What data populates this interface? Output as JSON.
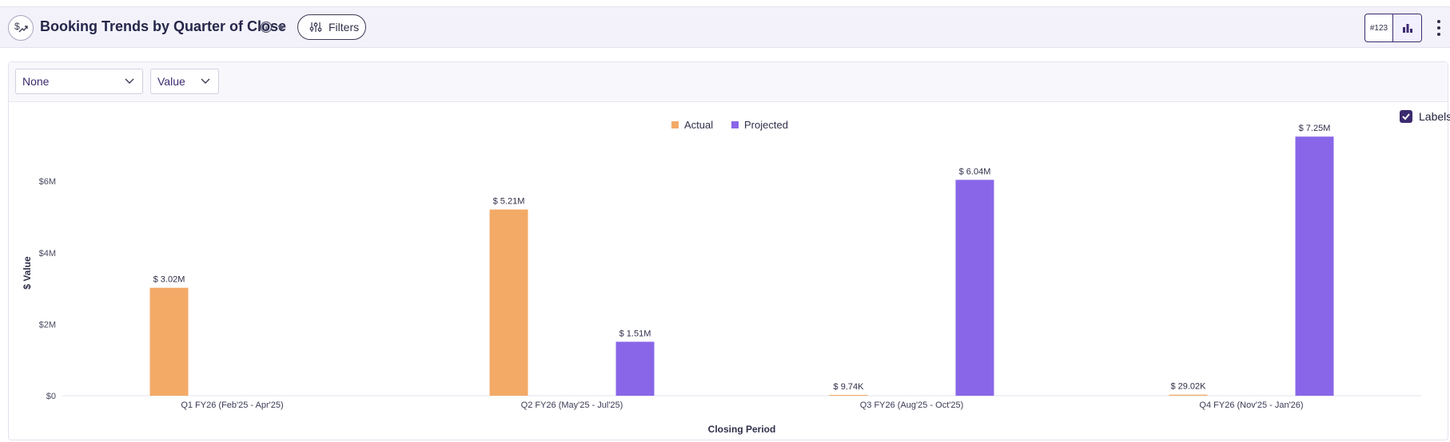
{
  "header": {
    "title": "Booking Trends by Quarter of Close",
    "filters_label": "Filters",
    "number_view_label": "#123"
  },
  "controls": {
    "group_by": "None",
    "measure": "Value",
    "labels_toggle": "Labels"
  },
  "colors": {
    "actual": "#f3aa67",
    "projected": "#8966e8",
    "accent": "#3c2a6f"
  },
  "chart_data": {
    "type": "bar",
    "title": "Booking Trends by Quarter of Close",
    "xlabel": "Closing Period",
    "ylabel": "$ Value",
    "ylim": [
      0,
      7500000
    ],
    "yticks": [
      {
        "value": 0,
        "label": "$0"
      },
      {
        "value": 2000000,
        "label": "$2M"
      },
      {
        "value": 4000000,
        "label": "$4M"
      },
      {
        "value": 6000000,
        "label": "$6M"
      }
    ],
    "categories": [
      "Q1 FY26 (Feb'25 - Apr'25)",
      "Q2 FY26 (May'25 - Jul'25)",
      "Q3 FY26 (Aug'25 - Oct'25)",
      "Q4 FY26 (Nov'25 - Jan'26)"
    ],
    "legend_position": "top-center",
    "series": [
      {
        "name": "Actual",
        "color": "#f3aa67",
        "values": [
          3020000,
          5210000,
          9740,
          29020
        ],
        "labels": [
          "$ 3.02M",
          "$ 5.21M",
          "$ 9.74K",
          "$ 29.02K"
        ]
      },
      {
        "name": "Projected",
        "color": "#8966e8",
        "values": [
          null,
          1510000,
          6040000,
          7250000
        ],
        "labels": [
          "",
          "$ 1.51M",
          "$ 6.04M",
          "$ 7.25M"
        ]
      }
    ]
  }
}
